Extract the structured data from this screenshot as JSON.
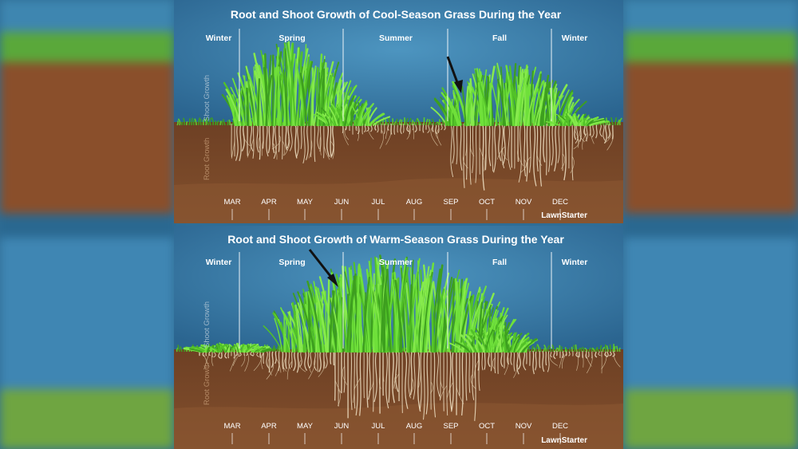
{
  "panels": [
    {
      "title": "Root and Shoot Growth of Cool-Season Grass During the Year",
      "seasons": [
        "Winter",
        "Spring",
        "Summer",
        "Fall",
        "Winter"
      ],
      "months": [
        "MAR",
        "APR",
        "MAY",
        "JUN",
        "JUL",
        "AUG",
        "SEP",
        "OCT",
        "NOV",
        "DEC"
      ],
      "shoot_label": "Shoot Growth",
      "root_label": "Root Growth",
      "brand": "LawnStarter",
      "arrow_points_to": "Fall"
    },
    {
      "title": "Root and Shoot Growth of Warm-Season Grass During the Year",
      "seasons": [
        "Winter",
        "Spring",
        "Summer",
        "Fall",
        "Winter"
      ],
      "months": [
        "MAR",
        "APR",
        "MAY",
        "JUN",
        "JUL",
        "AUG",
        "SEP",
        "OCT",
        "NOV",
        "DEC"
      ],
      "shoot_label": "Shoot Growth",
      "root_label": "Root Growth",
      "brand": "LawnStarter",
      "arrow_points_to": "Summer"
    }
  ],
  "colors": {
    "sky": "#2f6e99",
    "soil": "#7a4a2a",
    "grass": "#5fd030",
    "roots": "#f1e3c6"
  }
}
